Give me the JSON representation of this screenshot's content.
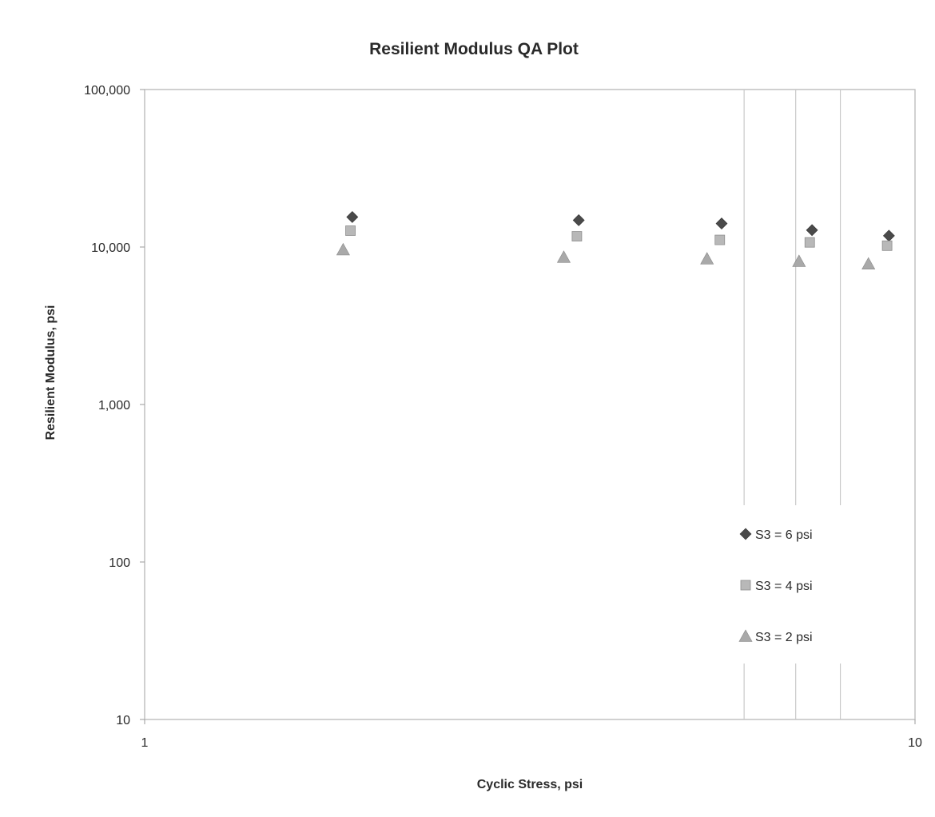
{
  "chart_data": {
    "type": "scatter",
    "title": "Resilient Modulus QA Plot",
    "xlabel": "Cyclic Stress,  psi",
    "ylabel": "Resilient Modulus,  psi",
    "x_scale": "log",
    "y_scale": "log",
    "xlim": [
      1,
      10
    ],
    "ylim": [
      10,
      100000
    ],
    "x_ticks": [
      {
        "value": 1,
        "label": "1"
      },
      {
        "value": 10,
        "label": "10"
      }
    ],
    "y_ticks": [
      {
        "value": 10,
        "label": "10"
      },
      {
        "value": 100,
        "label": "100"
      },
      {
        "value": 1000,
        "label": "1,000"
      },
      {
        "value": 10000,
        "label": "10,000"
      },
      {
        "value": 100000,
        "label": "100,000"
      }
    ],
    "x_gridlines": [
      6,
      7,
      8
    ],
    "grid": false,
    "legend_position": "bottom-right",
    "series": [
      {
        "name": "S3  = 6 psi",
        "marker": "diamond",
        "color": "#4a4a4a",
        "points": [
          {
            "x": 1.86,
            "y": 15500
          },
          {
            "x": 3.66,
            "y": 14800
          },
          {
            "x": 5.61,
            "y": 14100
          },
          {
            "x": 7.35,
            "y": 12800
          },
          {
            "x": 9.25,
            "y": 11800
          }
        ]
      },
      {
        "name": "S3  = 4 psi",
        "marker": "square",
        "color": "#b8b8b8",
        "points": [
          {
            "x": 1.85,
            "y": 12700
          },
          {
            "x": 3.64,
            "y": 11700
          },
          {
            "x": 5.58,
            "y": 11100
          },
          {
            "x": 7.3,
            "y": 10700
          },
          {
            "x": 9.2,
            "y": 10200
          }
        ]
      },
      {
        "name": "S3  = 2 psi",
        "marker": "triangle",
        "color": "#a9a9a9",
        "points": [
          {
            "x": 1.81,
            "y": 9600
          },
          {
            "x": 3.5,
            "y": 8600
          },
          {
            "x": 5.37,
            "y": 8400
          },
          {
            "x": 7.07,
            "y": 8100
          },
          {
            "x": 8.7,
            "y": 7800
          }
        ]
      }
    ]
  }
}
